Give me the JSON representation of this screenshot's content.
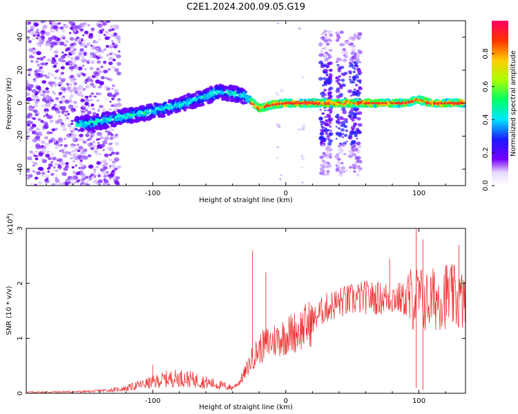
{
  "title": "C2E1.2024.200.09.05.G19",
  "chart_data": [
    {
      "type": "heatmap",
      "xlabel": "Height of straight line (km)",
      "ylabel": "Frequency (Hz)",
      "xlim": [
        -195,
        135
      ],
      "ylim": [
        -50,
        50
      ],
      "xticks": [
        -100,
        0,
        100
      ],
      "yticks": [
        -40,
        -20,
        0,
        20,
        40
      ],
      "colorbar": {
        "label": "Normalized spectral amplitude",
        "range": [
          0.0,
          1.0
        ],
        "ticks": [
          "0.0",
          "0.2",
          "0.4",
          "0.6",
          "0.8"
        ]
      },
      "ridge": {
        "description_points_x": [
          -155,
          -140,
          -120,
          -100,
          -80,
          -60,
          -50,
          -40,
          -30,
          -20,
          -10,
          0,
          10,
          20,
          27,
          40,
          45,
          55,
          60,
          70,
          80,
          90,
          100,
          110,
          120,
          135
        ],
        "description_points_y": [
          -13,
          -11,
          -8,
          -5,
          -1,
          4,
          7,
          6,
          4,
          -3,
          -1,
          0,
          0,
          0,
          0,
          0,
          0,
          0,
          0,
          0,
          0,
          0,
          2,
          0,
          0,
          0
        ]
      }
    },
    {
      "type": "line",
      "xlabel": "Height of straight line (km)",
      "ylabel": "SNR (10 * v/v)",
      "yscale_label": "(x10",
      "yscale_exp": "4",
      "yscale_close": ")",
      "xlim": [
        -195,
        135
      ],
      "ylim": [
        0,
        30000
      ],
      "xticks": [
        -100,
        0,
        100
      ],
      "yticks": [
        0,
        10000,
        20000,
        30000
      ],
      "ytick_labels": [
        "0",
        "1",
        "2",
        "3"
      ],
      "color": "#ee3333",
      "trend": {
        "x": [
          -195,
          -150,
          -130,
          -120,
          -110,
          -100,
          -90,
          -80,
          -70,
          -60,
          -50,
          -40,
          -35,
          -30,
          -25,
          -20,
          -15,
          -10,
          0,
          10,
          20,
          25,
          30,
          40,
          50,
          60,
          70,
          80,
          90,
          100,
          105,
          110,
          120,
          135
        ],
        "y": [
          200,
          300,
          600,
          900,
          1500,
          2000,
          2600,
          2800,
          2500,
          2000,
          1500,
          1000,
          2000,
          4000,
          6500,
          8000,
          9000,
          9500,
          10500,
          11500,
          13000,
          14500,
          15500,
          16500,
          17000,
          17500,
          17300,
          17500,
          17000,
          17500,
          16500,
          17000,
          18000,
          16500
        ]
      },
      "spikes": [
        {
          "x": -100,
          "y": 5200
        },
        {
          "x": -25,
          "y": 26000
        },
        {
          "x": -15,
          "y": 22000
        },
        {
          "x": 78,
          "y": 24500
        },
        {
          "x": 98,
          "y": 30500
        },
        {
          "x": 103,
          "y": 28000
        },
        {
          "x": 130,
          "y": 27000
        },
        {
          "x": 103,
          "y": 600
        },
        {
          "x": 98,
          "y": 1000
        }
      ]
    }
  ]
}
